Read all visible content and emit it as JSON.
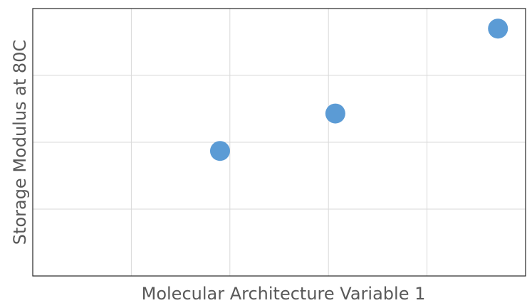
{
  "chart_data": {
    "type": "scatter",
    "title": "",
    "xlabel": "Molecular Architecture Variable 1",
    "ylabel": "Storage Modulus at 80C",
    "xlim": [
      0,
      5
    ],
    "ylim": [
      0,
      4
    ],
    "grid": true,
    "x_tick_labels_shown": false,
    "y_tick_labels_shown": false,
    "marker_color": "#5b9bd5",
    "series": [
      {
        "points": [
          {
            "x": 1.9,
            "y": 1.87
          },
          {
            "x": 3.07,
            "y": 2.43
          },
          {
            "x": 4.72,
            "y": 3.7
          }
        ]
      }
    ]
  }
}
